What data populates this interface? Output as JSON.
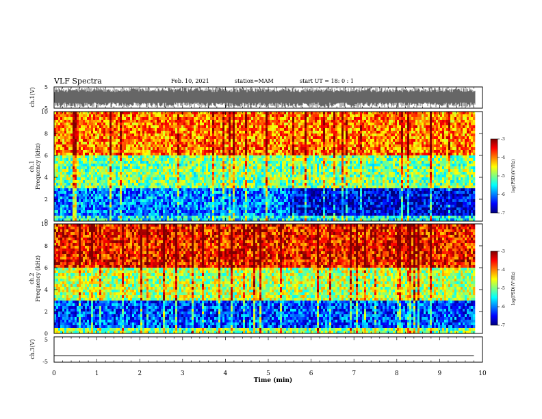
{
  "header": {
    "title": "VLF Spectra",
    "date": "Feb. 10, 2021",
    "station": "station=MAM",
    "start": "start  UT =   18: 0  : 1"
  },
  "chart_data": [
    {
      "type": "line",
      "panel": "ch1-waveform",
      "ylabel": "ch.1(V)",
      "ylim": [
        -5,
        5
      ],
      "yticks": [
        "5",
        "-5"
      ],
      "xlim": [
        0,
        10
      ],
      "description_values": "dense broadband waveform filling ±5 V"
    },
    {
      "type": "heatmap",
      "panel": "ch1-spectrogram",
      "ylabel": "Frequency (kHz)",
      "channel_label": "ch.1",
      "ylim": [
        0,
        10
      ],
      "yticks": [
        "0",
        "2",
        "4",
        "6",
        "8",
        "10"
      ],
      "xlim": [
        0,
        10
      ],
      "colorbar": {
        "label": "log(PSD)(V²/Hz)",
        "range": [
          -7,
          -3
        ],
        "ticks": [
          "-3",
          "-4",
          "-5",
          "-6",
          "-7"
        ]
      },
      "log_psd_profile_by_frequency_kHz": {
        "0-0.5": -5.5,
        "0.5-3": -6.0,
        "3-6": -5.0,
        "6-10": -4.0
      },
      "quiet_low_freq_after_min": 5.5
    },
    {
      "type": "heatmap",
      "panel": "ch2-spectrogram",
      "ylabel": "Frequency (kHz)",
      "channel_label": "ch.2",
      "ylim": [
        0,
        10
      ],
      "yticks": [
        "0",
        "2",
        "4",
        "6",
        "8",
        "10"
      ],
      "xlim": [
        0,
        10
      ],
      "colorbar": {
        "label": "log(PSD)(V²/Hz)",
        "range": [
          -7,
          -3
        ],
        "ticks": [
          "-3",
          "-4",
          "-5",
          "-6",
          "-7"
        ]
      },
      "log_psd_profile_by_frequency_kHz": {
        "0-0.5": -5.0,
        "0.5-3": -6.2,
        "3-6": -4.8,
        "6-10": -3.6
      }
    },
    {
      "type": "line",
      "panel": "ch3-waveform",
      "ylabel": "ch.3(V)",
      "ylim": [
        -5,
        5
      ],
      "yticks": [
        "5",
        "-5"
      ],
      "xlim": [
        0,
        10
      ],
      "x": [
        0,
        9.8
      ],
      "y": [
        -2.5,
        -2.5
      ]
    }
  ],
  "xaxis": {
    "label": "Time (min)",
    "ticks": [
      "0",
      "1",
      "2",
      "3",
      "4",
      "5",
      "6",
      "7",
      "8",
      "9",
      "10"
    ]
  },
  "colors": {
    "jet": [
      "#00007f",
      "#0000ff",
      "#0080ff",
      "#00ffff",
      "#80ff80",
      "#ffff00",
      "#ff8000",
      "#ff0000",
      "#7f0000"
    ]
  }
}
